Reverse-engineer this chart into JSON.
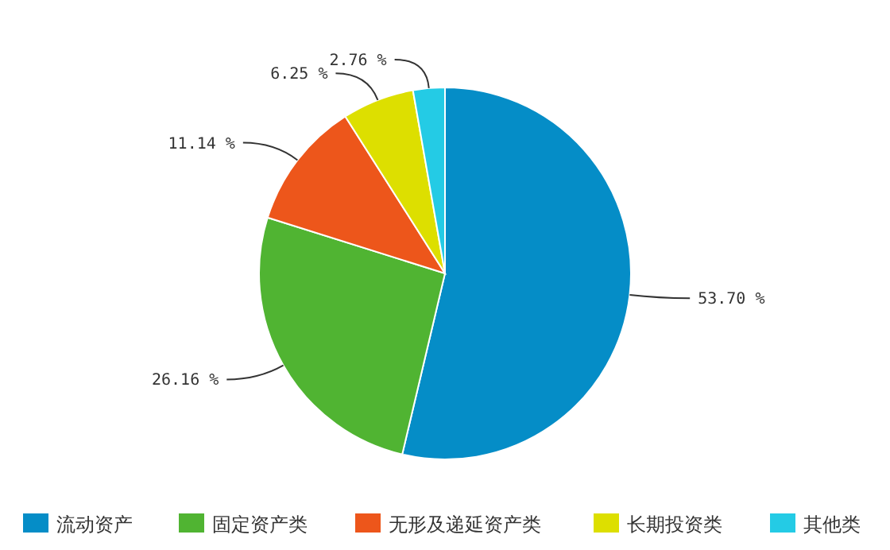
{
  "chart_data": {
    "type": "pie",
    "categories": [
      "流动资产",
      "固定资产类",
      "无形及递延资产类",
      "长期投资类",
      "其他类"
    ],
    "values": [
      53.7,
      26.16,
      11.14,
      6.25,
      2.76
    ],
    "colors": [
      "#058dc7",
      "#50b432",
      "#ed561b",
      "#dddf00",
      "#24cbe5"
    ],
    "value_labels": [
      "53.70 %",
      "26.16 %",
      "11.14 %",
      "6.25 %",
      "2.76 %"
    ],
    "legend": "bottom"
  }
}
